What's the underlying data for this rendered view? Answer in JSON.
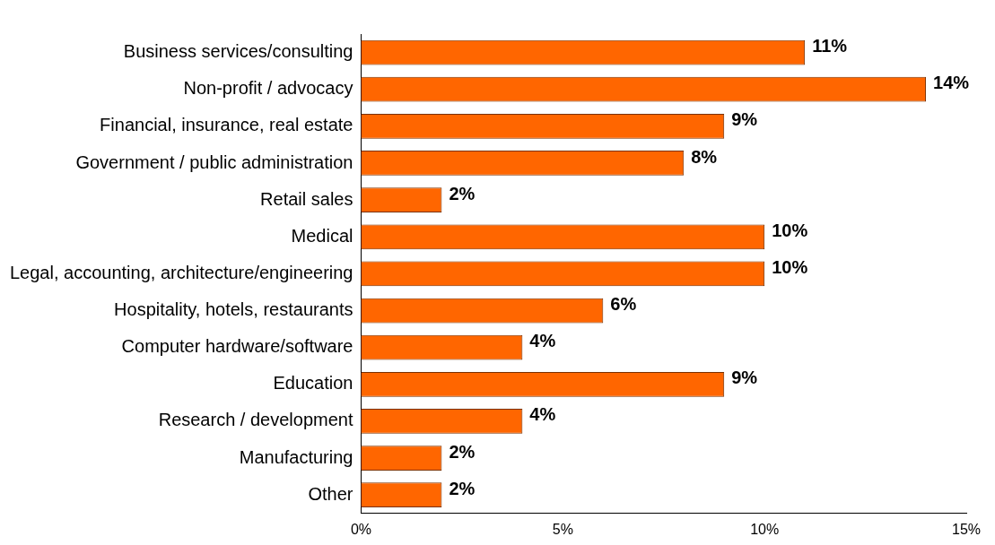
{
  "chart_data": {
    "type": "bar",
    "orientation": "horizontal",
    "categories": [
      "Business services/consulting",
      "Non-profit / advocacy",
      "Financial, insurance, real estate",
      "Government / public administration",
      "Retail sales",
      "Medical",
      "Legal, accounting, architecture/engineering",
      "Hospitality, hotels, restaurants",
      "Computer hardware/software",
      "Education",
      "Research / development",
      "Manufacturing",
      "Other"
    ],
    "values": [
      11,
      14,
      9,
      8,
      2,
      10,
      10,
      6,
      4,
      9,
      4,
      2,
      2
    ],
    "value_labels": [
      "11%",
      "14%",
      "9%",
      "8%",
      "2%",
      "10%",
      "10%",
      "6%",
      "4%",
      "9%",
      "4%",
      "2%",
      "2%"
    ],
    "color": "#ff6600",
    "xlim": [
      0,
      15
    ],
    "xticks": [
      {
        "value": 0,
        "label": "0%"
      },
      {
        "value": 5,
        "label": "5%"
      },
      {
        "value": 10,
        "label": "10%"
      },
      {
        "value": 15,
        "label": "15%"
      }
    ],
    "grid": false,
    "legend": false
  }
}
